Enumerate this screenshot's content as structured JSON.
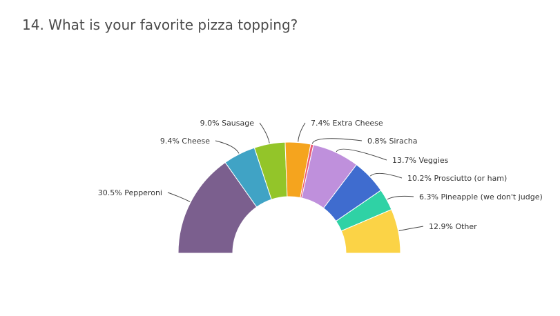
{
  "question": {
    "title": "14. What is your favorite pizza topping?"
  },
  "chart_data": {
    "type": "pie",
    "variant": "semi-donut",
    "title": "14. What is your favorite pizza topping?",
    "unit": "%",
    "slices": [
      {
        "name": "Pepperoni",
        "value": 30.5,
        "label": "30.5% Pepperoni",
        "color": "#7b5f8e"
      },
      {
        "name": "Cheese",
        "value": 9.4,
        "label": "9.4% Cheese",
        "color": "#40a3c5"
      },
      {
        "name": "Sausage",
        "value": 9.0,
        "label": "9.0% Sausage",
        "color": "#93c529"
      },
      {
        "name": "Extra Cheese",
        "value": 7.4,
        "label": "7.4% Extra Cheese",
        "color": "#f5a41e"
      },
      {
        "name": "Siracha",
        "value": 0.8,
        "label": "0.8% Siracha",
        "color": "#ea5a70"
      },
      {
        "name": "Veggies",
        "value": 13.7,
        "label": "13.7% Veggies",
        "color": "#bf90dc"
      },
      {
        "name": "Prosciutto (or ham)",
        "value": 10.2,
        "label": "10.2% Prosciutto (or ham)",
        "color": "#3f6ccf"
      },
      {
        "name": "Pineapple (we don't judge)",
        "value": 6.3,
        "label": "6.3% Pineapple (we don't judge)",
        "color": "#2fd2a5"
      },
      {
        "name": "Other",
        "value": 12.9,
        "label": "12.9% Other",
        "color": "#fbd346"
      }
    ]
  }
}
